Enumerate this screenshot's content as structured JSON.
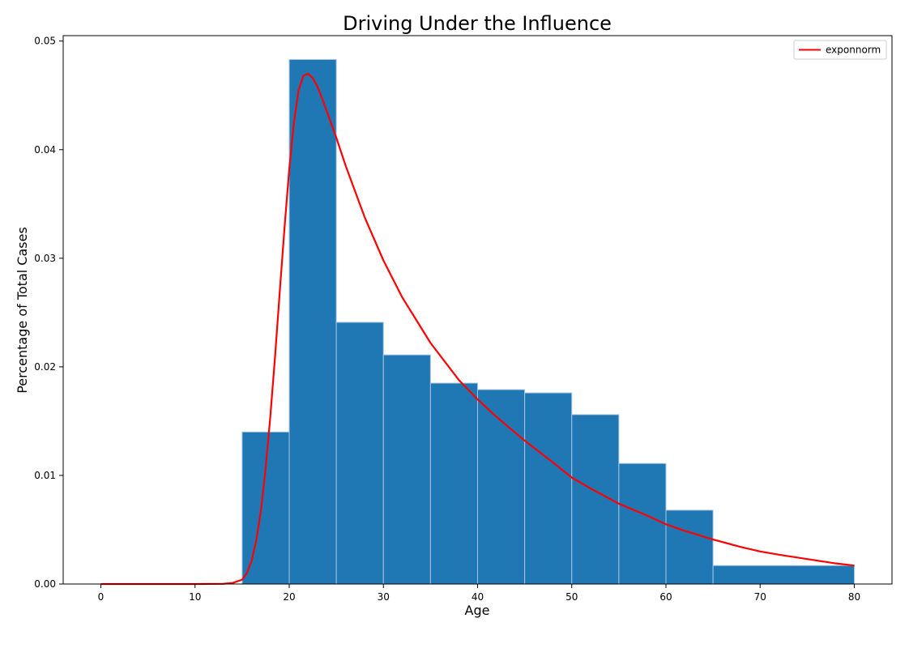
{
  "chart_data": {
    "type": "bar",
    "title": "Driving Under the Influence",
    "xlabel": "Age",
    "ylabel": "Percentage of Total Cases",
    "xlim": [
      -4,
      84
    ],
    "ylim": [
      0,
      0.0505
    ],
    "x_ticks": [
      0,
      10,
      20,
      30,
      40,
      50,
      60,
      70,
      80
    ],
    "y_ticks": [
      0.0,
      0.01,
      0.02,
      0.03,
      0.04,
      0.05
    ],
    "y_tick_labels": [
      "0.00",
      "0.01",
      "0.02",
      "0.03",
      "0.04",
      "0.05"
    ],
    "grid": false,
    "legend_position": "top-right",
    "colors": {
      "bars": "#1f77b4",
      "bar_edge": "#a9c4e2",
      "curve": "#ff0000"
    },
    "histogram": {
      "bin_edges": [
        15,
        20,
        25,
        30,
        35,
        40,
        45,
        50,
        55,
        60,
        65,
        80
      ],
      "values": [
        0.014,
        0.0483,
        0.0241,
        0.0211,
        0.0185,
        0.0179,
        0.0176,
        0.0156,
        0.0111,
        0.0068,
        0.0017
      ]
    },
    "series": [
      {
        "name": "exponnorm",
        "type": "line",
        "x": [
          0,
          10,
          13,
          14,
          15,
          15.5,
          16,
          16.5,
          17,
          17.5,
          18,
          18.5,
          19,
          19.5,
          20,
          20.5,
          21,
          21.5,
          22,
          22.5,
          23,
          23.5,
          24,
          25,
          26,
          28,
          30,
          32,
          35,
          38,
          40,
          42,
          45,
          48,
          50,
          52,
          55,
          58,
          60,
          62,
          65,
          68,
          70,
          72,
          75,
          78,
          80
        ],
        "y": [
          0,
          0,
          2e-05,
          0.0001,
          0.0004,
          0.001,
          0.0021,
          0.004,
          0.0068,
          0.0107,
          0.0155,
          0.021,
          0.027,
          0.0328,
          0.0382,
          0.0425,
          0.0455,
          0.0468,
          0.047,
          0.0466,
          0.0458,
          0.0447,
          0.0435,
          0.0411,
          0.0385,
          0.0338,
          0.0298,
          0.0264,
          0.0222,
          0.0188,
          0.017,
          0.0154,
          0.0132,
          0.0112,
          0.0098,
          0.0088,
          0.0074,
          0.0063,
          0.0055,
          0.0049,
          0.0041,
          0.0034,
          0.003,
          0.0027,
          0.0023,
          0.0019,
          0.0017
        ]
      }
    ]
  }
}
